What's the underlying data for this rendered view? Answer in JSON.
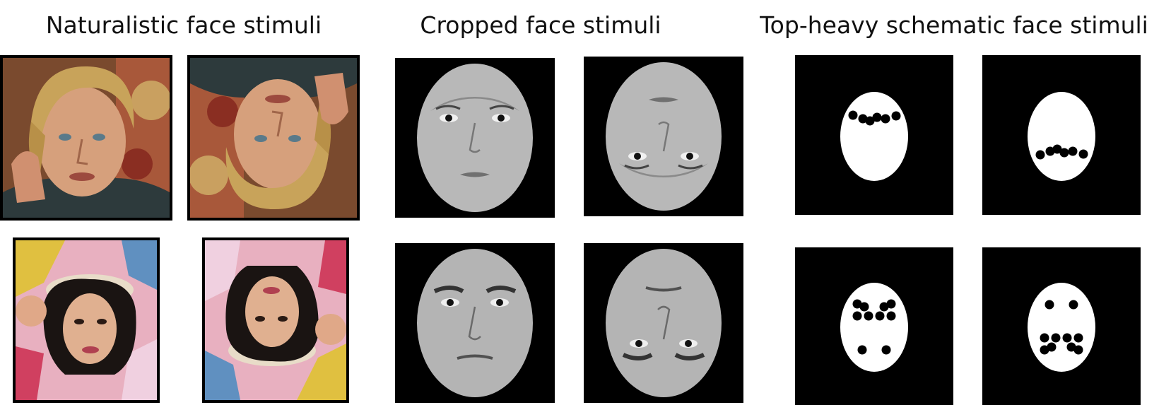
{
  "panels": [
    {
      "title": "Naturalistic face stimuli"
    },
    {
      "title": "Cropped face stimuli"
    },
    {
      "title": "Top-heavy schematic face stimuli"
    }
  ],
  "colors": {
    "background": "#ffffff",
    "stimulus_background": "#000000",
    "face_gray": "#b8b8b8",
    "schematic_face": "#ffffff",
    "schematic_dots": "#000000"
  },
  "stimuli": [
    {
      "panel": "naturalistic",
      "subject": "man",
      "orientation": "upright"
    },
    {
      "panel": "naturalistic",
      "subject": "man",
      "orientation": "inverted"
    },
    {
      "panel": "naturalistic",
      "subject": "woman",
      "orientation": "upright"
    },
    {
      "panel": "naturalistic",
      "subject": "woman",
      "orientation": "inverted"
    },
    {
      "panel": "cropped",
      "subject": "woman",
      "orientation": "upright"
    },
    {
      "panel": "cropped",
      "subject": "woman",
      "orientation": "inverted"
    },
    {
      "panel": "cropped",
      "subject": "man",
      "orientation": "upright"
    },
    {
      "panel": "cropped",
      "subject": "man",
      "orientation": "inverted"
    },
    {
      "panel": "schematic",
      "pattern": "top-heavy",
      "orientation": "upright"
    },
    {
      "panel": "schematic",
      "pattern": "top-heavy",
      "orientation": "inverted"
    },
    {
      "panel": "schematic",
      "pattern": "face-like",
      "orientation": "upright"
    },
    {
      "panel": "schematic",
      "pattern": "face-like",
      "orientation": "inverted"
    }
  ]
}
